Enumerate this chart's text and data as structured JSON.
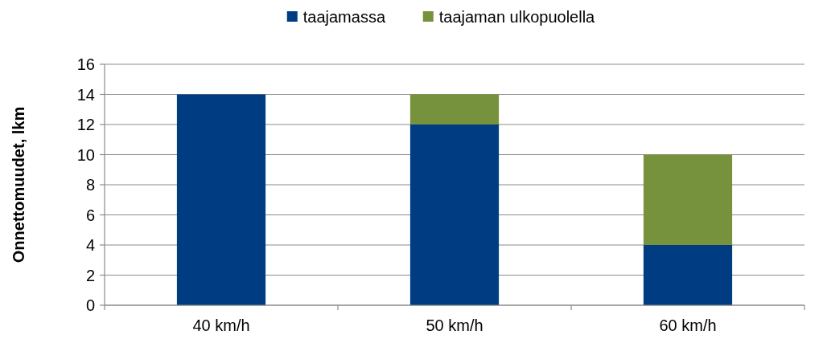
{
  "chart_data": {
    "type": "bar",
    "stacked": true,
    "ylabel": "Onnettomuudet, lkm",
    "categories": [
      "40 km/h",
      "50 km/h",
      "60 km/h"
    ],
    "series": [
      {
        "name": "taajamassa",
        "color": "#003c82",
        "values": [
          14,
          12,
          4
        ]
      },
      {
        "name": "taajaman ulkopuolella",
        "color": "#76923c",
        "values": [
          0,
          2,
          6
        ]
      }
    ],
    "ylim": [
      0,
      16
    ],
    "yticks": [
      0,
      2,
      4,
      6,
      8,
      10,
      12,
      14,
      16
    ],
    "grid": "y",
    "legend": "top"
  }
}
